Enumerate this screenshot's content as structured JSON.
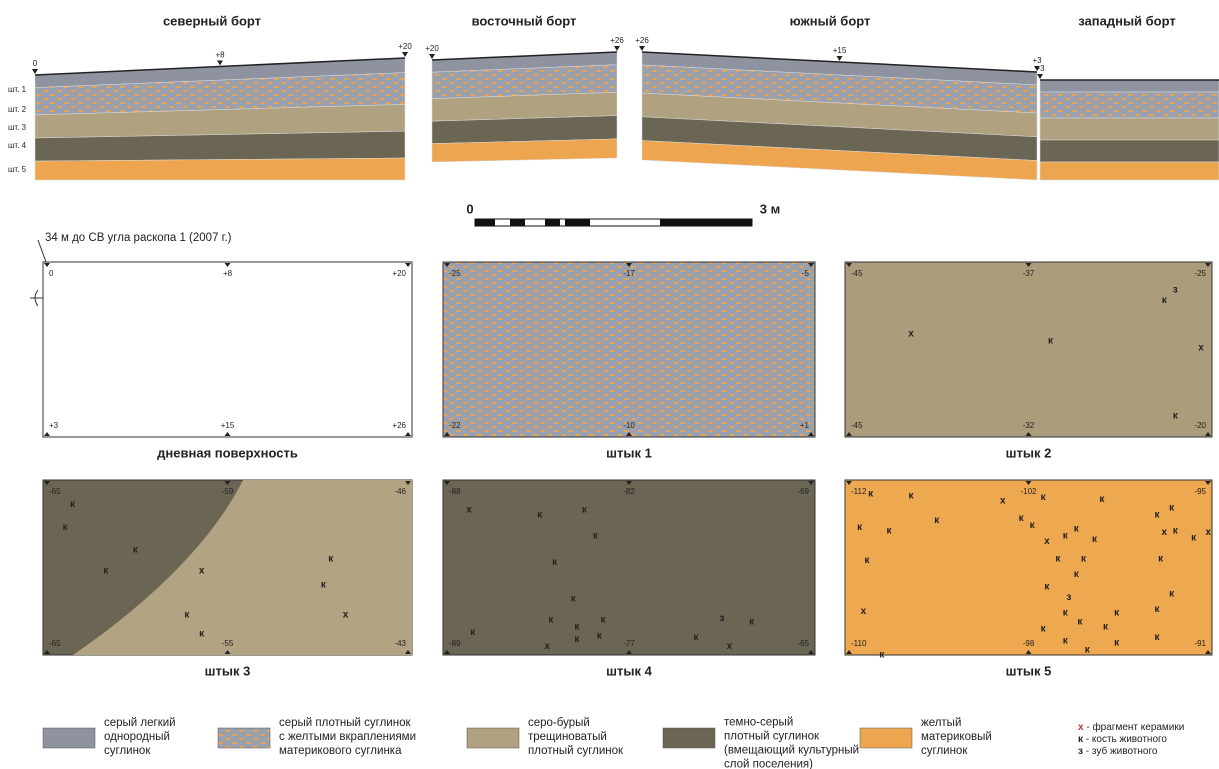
{
  "sections": [
    {
      "title": "северный борт",
      "marks": [
        "0",
        "+8",
        "+20"
      ]
    },
    {
      "title": "восточный борт",
      "marks": [
        "+20",
        "+26"
      ]
    },
    {
      "title": "южный борт",
      "marks": [
        "+26",
        "+15",
        "+3"
      ]
    },
    {
      "title": "западный борт",
      "marks": [
        "+3"
      ]
    }
  ],
  "layers": [
    "шт. 1",
    "шт. 2",
    "шт. 3",
    "шт. 4",
    "шт. 5"
  ],
  "scale": {
    "start": "0",
    "end": "3 м"
  },
  "note": "34 м до СВ угла раскопа 1 (2007 г.)",
  "plans": [
    {
      "caption": "дневная поверхность",
      "corners": [
        "0",
        "+8",
        "+20",
        "+3",
        "+15",
        "+26"
      ],
      "finds": []
    },
    {
      "caption": "штык 1",
      "corners": [
        "-25",
        "-17",
        "-5",
        "-22",
        "-10",
        "+1"
      ],
      "finds": []
    },
    {
      "caption": "штык 2",
      "corners": [
        "-45",
        "-37",
        "-25",
        "-45",
        "-32",
        "-20"
      ],
      "finds": [
        "з",
        "к",
        "х",
        "к",
        "х",
        "к"
      ]
    },
    {
      "caption": "штык 3",
      "corners": [
        "-65",
        "-59",
        "-46",
        "-65",
        "-55",
        "-43"
      ],
      "finds": [
        "к",
        "к",
        "к",
        "к",
        "х",
        "к",
        "к",
        "х",
        "к",
        "к"
      ]
    },
    {
      "caption": "штык 4",
      "corners": [
        "-88",
        "-82",
        "-69",
        "-89",
        "-77",
        "-65"
      ],
      "finds": [
        "х",
        "к",
        "к",
        "к",
        "к",
        "к",
        "к",
        "к",
        "к",
        "к",
        "к",
        "х",
        "к",
        "к",
        "з",
        "к",
        "х"
      ]
    },
    {
      "caption": "штык 5",
      "corners": [
        "-112",
        "-102",
        "-95",
        "-110",
        "-98",
        "-91"
      ],
      "finds": [
        "к",
        "к",
        "х",
        "к",
        "к",
        "к",
        "к",
        "к",
        "к",
        "к",
        "к",
        "к",
        "к",
        "к",
        "к",
        "к",
        "х",
        "к",
        "к",
        "к",
        "к",
        "к",
        "х",
        "к",
        "к",
        "з",
        "к",
        "к",
        "к",
        "к",
        "к",
        "х",
        "к",
        "х",
        "к",
        "к",
        "к",
        "к",
        "к",
        "к"
      ]
    }
  ],
  "legend": [
    {
      "lines": [
        "серый легкий",
        "однородный",
        "суглинок"
      ]
    },
    {
      "lines": [
        "серый плотный суглинок",
        "с желтыми вкраплениями",
        "материкового суглинка"
      ]
    },
    {
      "lines": [
        "серо-бурый",
        "трещиноватый",
        "плотный суглинок"
      ]
    },
    {
      "lines": [
        "темно-серый",
        "плотный суглинок",
        "(вмещающий культурный",
        "слой поселения)"
      ]
    },
    {
      "lines": [
        "желтый",
        "материковый",
        "суглинок"
      ]
    }
  ],
  "key": [
    {
      "symbol": "х",
      "text": " - фрагмент керамики",
      "color": "#d42a2a"
    },
    {
      "symbol": "к",
      "text": " - кость животного",
      "color": "#222222"
    },
    {
      "symbol": "з",
      "text": " - зуб животного",
      "color": "#222222"
    }
  ]
}
